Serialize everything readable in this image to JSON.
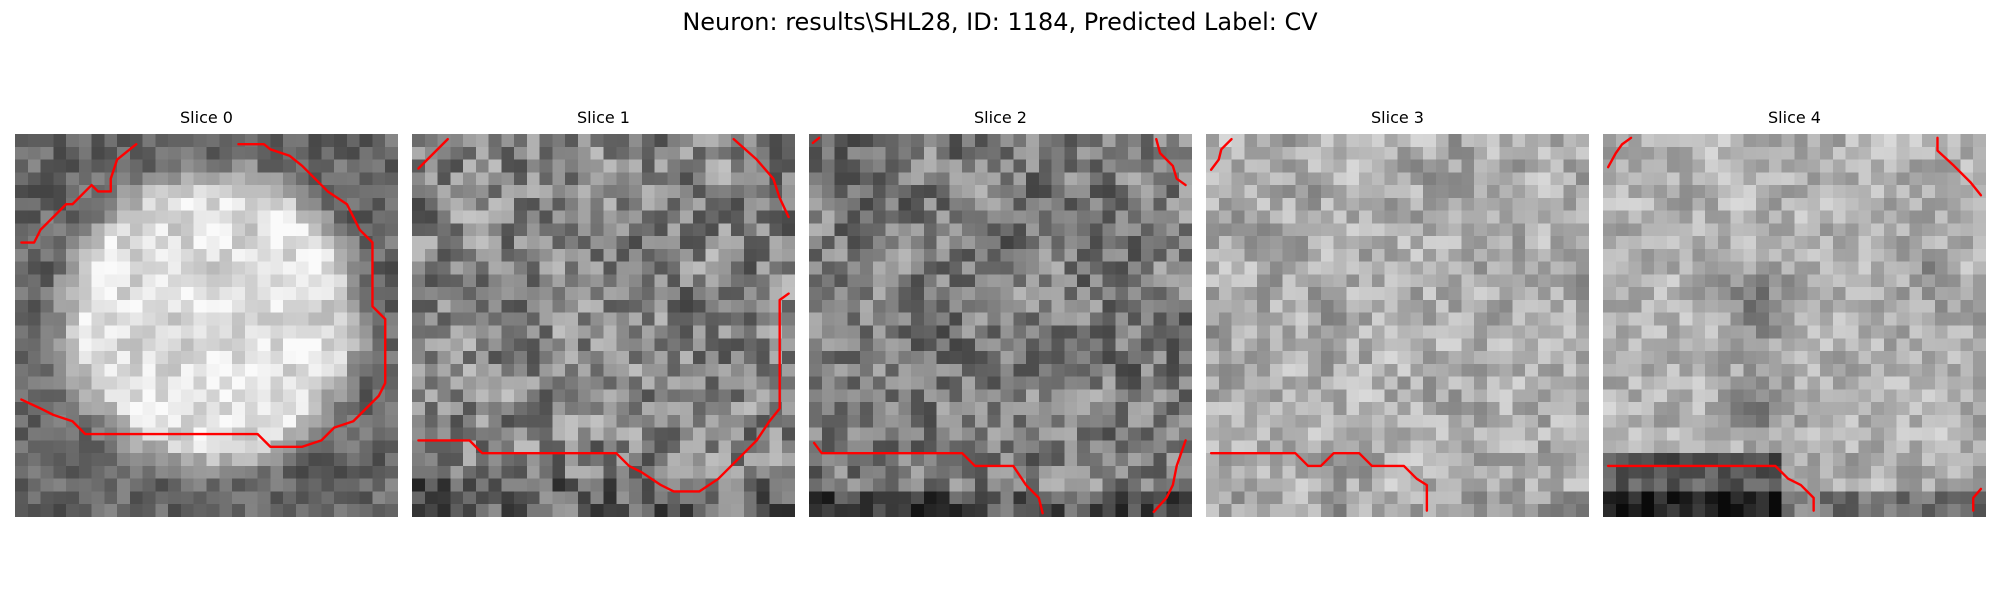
{
  "figure": {
    "title": "Neuron: results\\SHL28, ID: 1184, Predicted Label: CV"
  },
  "slices": [
    {
      "title": "Slice 0"
    },
    {
      "title": "Slice 1"
    },
    {
      "title": "Slice 2"
    },
    {
      "title": "Slice 3"
    },
    {
      "title": "Slice 4"
    }
  ],
  "colors": {
    "contour": "#ff0000",
    "colormap": "gray"
  }
}
